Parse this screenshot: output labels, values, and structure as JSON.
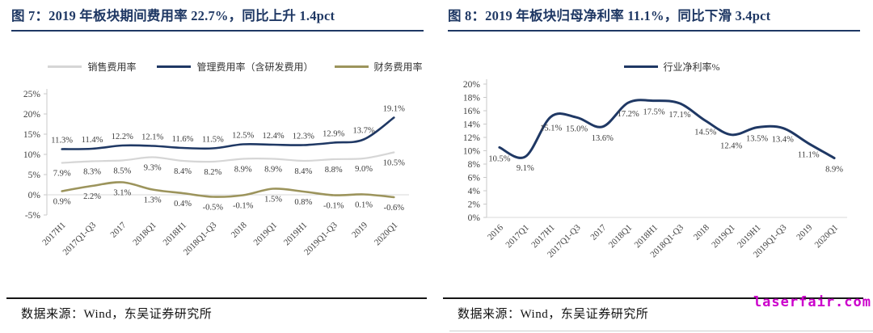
{
  "watermark": "laserfair.com",
  "sources": {
    "figure7": "数据来源：Wind，东吴证券研究所",
    "figure8": "数据来源：Wind，东吴证券研究所"
  },
  "colors": {
    "title_navy": "#1f3864",
    "series_navy": "#1f3864",
    "series_gray": "#d6d6d6",
    "series_olive": "#9c945c",
    "watermark_magenta": "#cc00cc",
    "rule_black": "#151515"
  },
  "chart_data": [
    {
      "type": "line",
      "title": "图 7：2019 年板块期间费用率 22.7%，同比上升 1.4pct",
      "categories": [
        "2017H1",
        "2017Q1-Q3",
        "2017",
        "2018Q1",
        "2018H1",
        "2018Q1-Q3",
        "2018",
        "2019Q1",
        "2019H1",
        "2019Q1-Q3",
        "2019",
        "2020Q1"
      ],
      "series": [
        {
          "name": "销售费用率",
          "color": "#d6d6d6",
          "label_position": "below",
          "values": [
            7.9,
            8.3,
            8.5,
            9.3,
            8.4,
            8.2,
            8.9,
            8.9,
            8.4,
            8.8,
            9.0,
            10.5
          ]
        },
        {
          "name": "管理费用率（含研发费用）",
          "color": "#1f3864",
          "label_position": "above",
          "values": [
            11.3,
            11.4,
            12.2,
            12.1,
            11.6,
            11.5,
            12.5,
            12.4,
            12.3,
            12.9,
            13.7,
            19.1
          ]
        },
        {
          "name": "财务费用率",
          "color": "#9c945c",
          "label_position": "below",
          "values": [
            0.9,
            2.2,
            3.1,
            1.3,
            0.4,
            -0.5,
            -0.1,
            1.5,
            0.8,
            -0.1,
            0.1,
            -0.6
          ]
        }
      ],
      "xlabel": "",
      "ylabel": "",
      "ylim": [
        -5,
        25
      ],
      "ytick_step": 5,
      "grid": false,
      "legend_position": "top"
    },
    {
      "type": "line",
      "title": "图 8：2019 年板块归母净利率 11.1%，同比下滑 3.4pct",
      "categories": [
        "2016",
        "2017Q1",
        "2017H1",
        "2017Q1-Q3",
        "2017",
        "2018Q1",
        "2018H1",
        "2018Q1-Q3",
        "2018",
        "2019Q1",
        "2019H1",
        "2019Q1-Q3",
        "2019",
        "2020Q1"
      ],
      "series": [
        {
          "name": "行业净利率%",
          "color": "#1f3864",
          "label_position": "below",
          "values": [
            10.5,
            9.1,
            15.1,
            15.0,
            13.6,
            17.2,
            17.5,
            17.1,
            14.5,
            12.4,
            13.5,
            13.4,
            11.1,
            8.9
          ]
        }
      ],
      "xlabel": "",
      "ylabel": "",
      "ylim": [
        0,
        20
      ],
      "ytick_step": 2,
      "grid": false,
      "legend_position": "top"
    }
  ]
}
